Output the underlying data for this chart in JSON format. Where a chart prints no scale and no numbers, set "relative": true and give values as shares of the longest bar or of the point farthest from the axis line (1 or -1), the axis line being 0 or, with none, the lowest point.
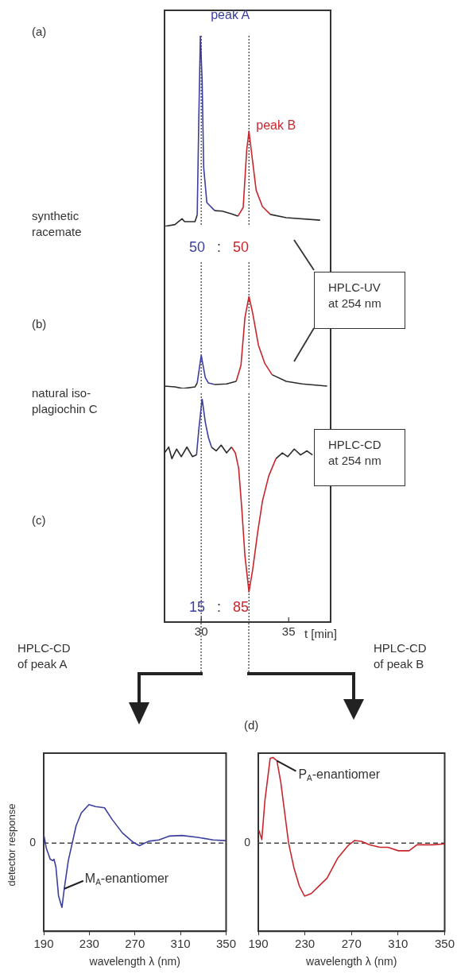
{
  "chart_data": [
    {
      "type": "line",
      "relative": true,
      "xlim": [
        27.9,
        37.4
      ],
      "xticks": [
        30,
        35
      ],
      "tick_labels": false,
      "marker": "none",
      "annotations": [
        "(a)",
        "synthetic racemate",
        {
          "text": "peak A",
          "x": 30,
          "y": 1
        },
        {
          "text": "peak B",
          "x": 32.73,
          "y": 0.5
        },
        "50 : 50"
      ],
      "ref_lines": [
        {
          "axis": "x",
          "value": 30,
          "line_style": "dotted",
          "color": "#555555"
        },
        {
          "axis": "x",
          "value": 32.73,
          "line_style": "dotted",
          "color": "#555555"
        }
      ],
      "series": [
        {
          "color": "#2b2b2b",
          "x": [
            27.9,
            28.5,
            28.9,
            29.05,
            29.64,
            29.77,
            30.4,
            30.77,
            31.2,
            31.7,
            32.1,
            33.3,
            33.95,
            34.86,
            36.8
          ],
          "values": [
            0,
            0.01,
            0.04,
            0.025,
            0.025,
            0.06,
            null,
            0.083,
            0.08,
            0.067,
            0.054,
            null,
            0.063,
            0.046,
            0.033
          ]
        },
        {
          "color": "#3b3f9e",
          "x": [
            29.77,
            29.86,
            29.95,
            30.05,
            30.14,
            30.32,
            30.77
          ],
          "values": [
            0.06,
            0.56,
            1,
            0.77,
            0.31,
            0.125,
            0.083
          ]
        },
        {
          "color": "#c9262c",
          "x": [
            32.1,
            32.4,
            32.6,
            32.73,
            32.86,
            33.14,
            33.5,
            33.95
          ],
          "values": [
            0.054,
            0.1,
            0.4,
            0.5,
            0.4,
            0.19,
            0.104,
            0.063
          ]
        }
      ]
    },
    {
      "type": "line",
      "relative": true,
      "xlim": [
        27.9,
        37.4
      ],
      "xticks": [
        30,
        35
      ],
      "tick_labels": false,
      "marker": "none",
      "annotations": [
        "(b)",
        "natural iso-plagiochin C",
        "HPLC-UV at 254 nm"
      ],
      "ref_lines": [
        {
          "axis": "x",
          "value": 30,
          "line_style": "dotted",
          "color": "#555555"
        },
        {
          "axis": "x",
          "value": 32.73,
          "line_style": "dotted",
          "color": "#555555"
        }
      ],
      "series": [
        {
          "color": "#2b2b2b",
          "x": [
            27.9,
            28.5,
            28.95,
            29.64,
            29.77,
            30.2,
            30.77,
            31.45,
            32.0,
            33.0,
            34.05,
            34.86,
            35.77,
            37.2
          ],
          "values": [
            0.026,
            0.017,
            0,
            0.017,
            0.06,
            null,
            0.043,
            0.05,
            0.078,
            null,
            0.15,
            0.078,
            0.05,
            0.026
          ]
        },
        {
          "color": "#3b3f9e",
          "x": [
            29.77,
            30.0,
            30.23,
            30.41,
            30.77
          ],
          "values": [
            0.06,
            0.36,
            0.12,
            0.06,
            0.043
          ]
        },
        {
          "color": "#c9262c",
          "x": [
            32.0,
            32.27,
            32.5,
            32.73,
            32.95,
            33.27,
            33.64,
            34.05
          ],
          "values": [
            0.078,
            0.25,
            0.77,
            1,
            0.81,
            0.47,
            0.27,
            0.15
          ]
        }
      ]
    },
    {
      "type": "line",
      "relative": true,
      "xlim": [
        27.9,
        37.4
      ],
      "xticks": [
        30,
        35
      ],
      "tick_labels": "x",
      "xlabel": "t [min]",
      "marker": "none",
      "annotations": [
        "(c)",
        "15 : 85",
        "HPLC-CD at 254 nm",
        "HPLC-CD of peak A",
        "HPLC-CD of peak B"
      ],
      "ref_lines": [
        {
          "axis": "x",
          "value": 30,
          "line_style": "dotted",
          "color": "#555555"
        },
        {
          "axis": "x",
          "value": 32.73,
          "line_style": "dotted",
          "color": "#555555"
        }
      ],
      "series": [
        {
          "color": "#2b2b2b",
          "x": [
            27.9,
            28.14,
            28.32,
            28.59,
            28.86,
            29.18,
            29.5,
            29.73,
            30.2,
            30.59,
            30.86,
            31.14,
            31.45,
            31.73,
            33.0,
            34.27,
            34.64,
            34.95,
            35.32,
            35.68,
            36.05,
            36.36
          ],
          "values": [
            0.757,
            0.783,
            0.731,
            0.774,
            0.74,
            0.783,
            0.74,
            0.748,
            null,
            0.783,
            0.766,
            0.792,
            0.757,
            0.783,
            null,
            0.731,
            0.757,
            0.74,
            0.774,
            0.748,
            0.766,
            0.748
          ]
        },
        {
          "color": "#3b3f9e",
          "x": [
            29.73,
            29.86,
            30.05,
            30.23,
            30.41,
            30.59
          ],
          "values": [
            0.748,
            0.861,
            1,
            0.896,
            0.826,
            0.783
          ]
        },
        {
          "color": "#c9262c",
          "x": [
            31.73,
            31.95,
            32.14,
            32.32,
            32.5,
            32.73,
            32.95,
            33.23,
            33.5,
            33.86,
            34.27
          ],
          "values": [
            0.783,
            0.757,
            0.688,
            0.505,
            0.293,
            0.132,
            0.236,
            0.401,
            0.54,
            0.653,
            0.731
          ]
        }
      ]
    },
    {
      "type": "line",
      "relative": true,
      "xlim": [
        190,
        350
      ],
      "xticks": [
        190,
        230,
        270,
        310,
        350
      ],
      "xlabel": "wavelength λ (nm)",
      "ylabel": "detector response",
      "marker": "none",
      "annotations": [
        {
          "text": "M$_{A}$-enantiomer",
          "x": 208,
          "y": -0.71
        }
      ],
      "ref_lines": [
        {
          "axis": "y",
          "value": 0,
          "label": "0",
          "line_style": "dashed",
          "color": "#444444"
        }
      ],
      "series": [
        {
          "color": "#3b3f9e",
          "x": [
            190,
            192.3,
            195.7,
            198,
            199,
            200.7,
            203,
            206,
            208,
            211.6,
            215,
            218.4,
            223,
            229.7,
            235.4,
            243.3,
            250,
            259,
            268,
            274,
            282,
            291,
            300,
            311.4,
            325,
            338.7,
            349.6
          ],
          "values": [
            0.14,
            -0.08,
            -0.25,
            -0.27,
            -0.25,
            -0.37,
            -0.82,
            -1,
            -0.71,
            -0.27,
            0,
            0.27,
            0.47,
            0.6,
            0.57,
            0.55,
            0.37,
            0.16,
            0.02,
            -0.04,
            0.03,
            0.05,
            0.11,
            0.12,
            0.09,
            0.05,
            0.04
          ]
        }
      ]
    },
    {
      "type": "line",
      "relative": true,
      "xlim": [
        190,
        350
      ],
      "xticks": [
        190,
        230,
        270,
        310,
        350
      ],
      "xlabel": "wavelength λ (nm)",
      "marker": "none",
      "annotations": [
        "(d)",
        {
          "text": "P$_{A}$-enantiomer",
          "x": 206,
          "y": 0.96
        }
      ],
      "ref_lines": [
        {
          "axis": "y",
          "value": 0,
          "label": "0",
          "line_style": "dashed",
          "color": "#444444"
        }
      ],
      "series": [
        {
          "color": "#c9262c",
          "x": [
            190.5,
            193,
            195.7,
            200.2,
            202.5,
            206,
            209.3,
            212.7,
            216,
            220.6,
            225.2,
            229.7,
            235.4,
            242.2,
            249,
            258,
            267,
            272.8,
            278.5,
            285.3,
            294.4,
            301.2,
            310.3,
            319.4,
            326.2,
            340,
            350
          ],
          "values": [
            0.15,
            0.04,
            0.5,
            0.99,
            1,
            0.96,
            0.71,
            0.35,
            0,
            -0.29,
            -0.5,
            -0.62,
            -0.59,
            -0.5,
            -0.41,
            -0.18,
            -0.03,
            0.03,
            0.02,
            -0.02,
            -0.05,
            -0.05,
            -0.09,
            -0.09,
            -0.02,
            -0.02,
            -0.01
          ]
        }
      ]
    }
  ]
}
